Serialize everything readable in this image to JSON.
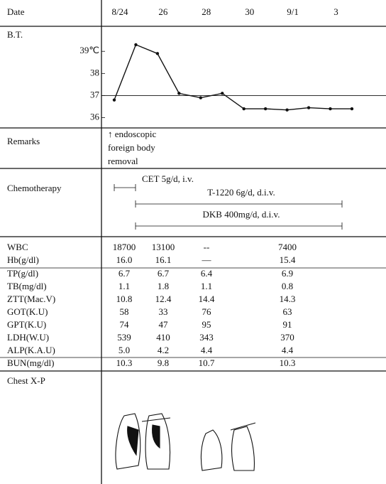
{
  "row_labels": {
    "date": "Date",
    "bt": "B.T.",
    "remarks": "Remarks",
    "chemotherapy": "Chemotherapy",
    "chest": "Chest X-P"
  },
  "chart_data": {
    "type": "line",
    "categories": [
      "8/24",
      null,
      "26",
      null,
      "28",
      null,
      "30",
      null,
      "9/1",
      null,
      "3",
      null
    ],
    "values": [
      36.8,
      39.3,
      38.9,
      37.1,
      36.9,
      37.1,
      36.4,
      36.4,
      36.35,
      36.45,
      36.4,
      36.4
    ],
    "color": "#111111",
    "ylim": [
      35.6,
      40.1
    ],
    "yticks": [
      36,
      37,
      38,
      {
        "value": 39,
        "label": "39℃"
      }
    ]
  },
  "remarks": [
    "↑ endoscopic",
    "foreign body",
    "removal"
  ],
  "chemotherapy": [
    "CET 5g/d, i.v.",
    "T-1220 6g/d, d.i.v.",
    "DKB 400mg/d, d.i.v."
  ],
  "labs": {
    "group1": [
      {
        "label": "WBC",
        "values": [
          "18700",
          "13100",
          "--",
          "7400"
        ]
      },
      {
        "label": "Hb(g/dl)",
        "values": [
          "16.0",
          "16.1",
          "—",
          "15.4"
        ]
      }
    ],
    "group2": [
      {
        "label": "TP(g/dl)",
        "values": [
          "6.7",
          "6.7",
          "6.4",
          "6.9"
        ]
      },
      {
        "label": "TB(mg/dl)",
        "values": [
          "1.1",
          "1.8",
          "1.1",
          "0.8"
        ]
      },
      {
        "label": "ZTT(Mac.V)",
        "values": [
          "10.8",
          "12.4",
          "14.4",
          "14.3"
        ]
      },
      {
        "label": "GOT(K.U)",
        "values": [
          "58",
          "33",
          "76",
          "63"
        ]
      },
      {
        "label": "GPT(K.U)",
        "values": [
          "74",
          "47",
          "95",
          "91"
        ]
      },
      {
        "label": "LDH(W.U)",
        "values": [
          "539",
          "410",
          "343",
          "370"
        ]
      },
      {
        "label": "ALP(K.A.U)",
        "values": [
          "5.0",
          "4.2",
          "4.4",
          "4.4"
        ]
      }
    ],
    "group3": [
      {
        "label": "BUN(mg/dl)",
        "values": [
          "10.3",
          "9.8",
          "10.7",
          "10.3"
        ]
      }
    ]
  }
}
